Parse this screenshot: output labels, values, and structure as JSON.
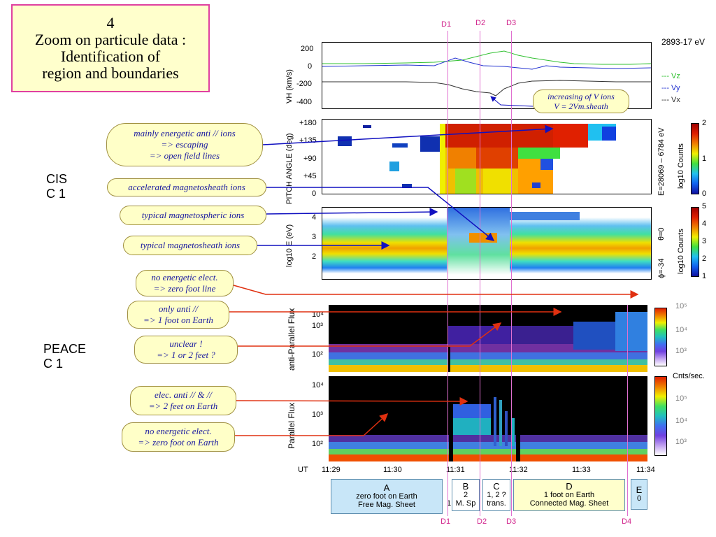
{
  "title": {
    "number": "4",
    "line1": "Zoom on particule data :",
    "line2": "Identification of",
    "line3": "region and boundaries"
  },
  "instruments": {
    "cis_1": "CIS",
    "cis_2": "C 1",
    "peace_1": "PEACE",
    "peace_2": "C 1"
  },
  "notes": {
    "escaping": [
      "mainly energetic  anti // ions",
      "=> escaping",
      "=> open field lines"
    ],
    "accelerated": "accelerated magnetosheath ions",
    "magnetospheric": "typical magnetospheric ions",
    "magnetosheath": "typical magnetosheath ions",
    "no_energetic_1": [
      "no energetic elect.",
      "=> zero foot line"
    ],
    "only_anti": [
      "only anti //",
      "=> 1 foot on Earth"
    ],
    "unclear": [
      "unclear !",
      "=> 1 or 2 feet ?"
    ],
    "elec_anti": [
      "elec. anti // &  //",
      "=> 2 feet on Earth"
    ],
    "no_energetic_2": [
      "no energetic elect.",
      "=> zero foot on Earth"
    ],
    "vions": [
      "increasing of V ions",
      "V = 2Vm.sheath"
    ]
  },
  "velocity_panel": {
    "energy_range": "2893-17 eV",
    "ylabel": "VH (km/s)",
    "yticks": [
      "200",
      "0",
      "-200",
      "-400"
    ],
    "legend": [
      "Vz",
      "Vy",
      "Vx"
    ]
  },
  "pitch_panel": {
    "ylabel": "PITCH ANGLE (deg)",
    "yticks": [
      "+180",
      "+135",
      "+90",
      "+45",
      "0"
    ],
    "right_label": "E=28069 – 6784 eV",
    "cbar_label": "log10 Counts",
    "cbar_ticks": [
      "2",
      "1",
      "0"
    ]
  },
  "energy_panel": {
    "ylabel": "log10 E (eV)",
    "yticks": [
      "4",
      "3",
      "2"
    ],
    "right_labels": [
      "θ=0",
      "ϕ=-34"
    ],
    "cbar_label": "log10 Counts",
    "cbar_ticks": [
      "5",
      "4",
      "3",
      "2",
      "1"
    ]
  },
  "peace_antipar": {
    "ylabel": "anti-Parallel  Flux",
    "yticks": [
      "10⁴",
      "10³",
      "10²"
    ],
    "cbar_ticks": [
      "10⁵",
      "10⁴",
      "10³"
    ]
  },
  "peace_par": {
    "ylabel": "Parallel  Flux",
    "yticks": [
      "10⁴",
      "10³",
      "10²"
    ],
    "cbar_ticks": [
      "10⁵",
      "10⁴",
      "10³"
    ],
    "cbar_unit": "Cnts/sec."
  },
  "time_axis": {
    "label": "UT",
    "ticks": [
      "11:29",
      "11:30",
      "11:31",
      "11:32",
      "11:33",
      "11:34"
    ]
  },
  "boundaries": {
    "top": [
      "D1",
      "D2",
      "D3"
    ],
    "bottom": [
      "D1",
      "D2",
      "D3",
      "D4"
    ]
  },
  "regions": {
    "a": [
      "A",
      "zero foot on Earth",
      "Free Mag. Sheet"
    ],
    "small": "1",
    "b": [
      "B",
      "2",
      "M. Sp"
    ],
    "c": [
      "C",
      "1, 2 ?",
      "trans."
    ],
    "d": [
      "D",
      "1  foot on Earth",
      "Connected Mag. Sheet"
    ],
    "e": [
      "E",
      "0"
    ]
  },
  "colors": {
    "title_border": "#e040a0",
    "note_bg": "#ffffc8",
    "note_text": "#1a1aa0",
    "boundary": "#e070d0",
    "arrow_blue": "#1010c0",
    "arrow_red": "#e03010"
  }
}
